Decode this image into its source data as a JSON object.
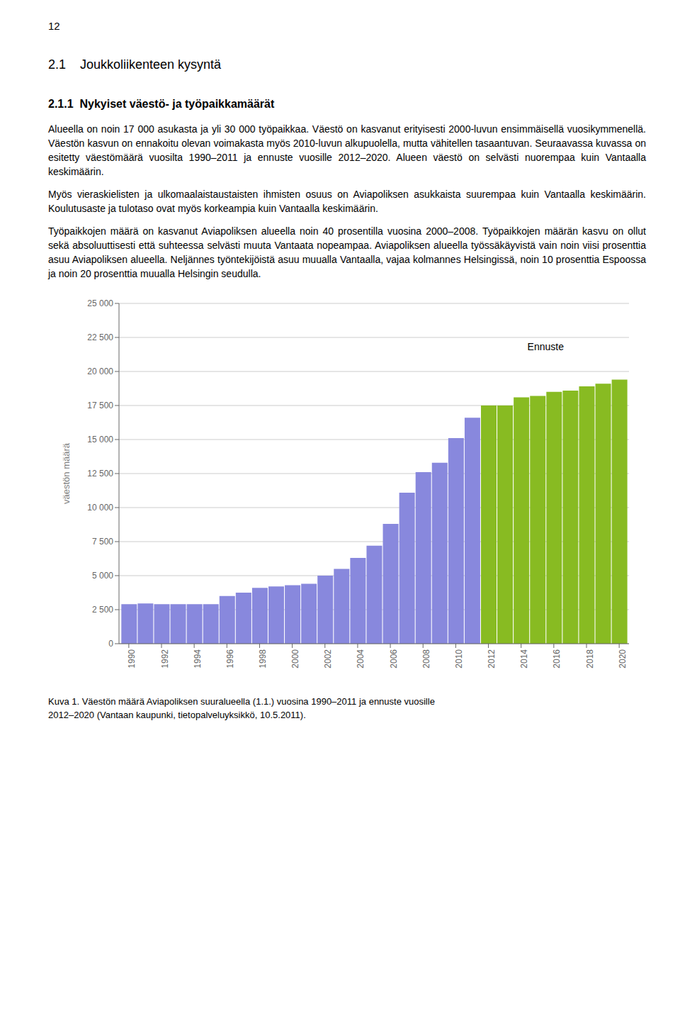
{
  "page": {
    "page_number": "12",
    "heading1": "2.1    Joukkoliikenteen kysyntä",
    "heading2": "2.1.1  Nykyiset väestö- ja työpaikkamäärät",
    "paragraphs": [
      "Alueella on noin 17 000 asukasta ja yli 30 000 työpaikkaa. Väestö on kasvanut erityisesti 2000-luvun ensimmäisellä vuosikymmenellä. Väestön kasvun on ennakoitu olevan voimakasta myös 2010-luvun alkupuolella, mutta vähitellen tasaantuvan. Seuraavassa kuvassa on esitetty väestömäärä vuosilta 1990–2011 ja ennuste vuosille 2012–2020. Alueen väestö on selvästi nuorempaa kuin Vantaalla keskimäärin.",
      "Myös vieraskielisten ja ulkomaalaistaustaisten ihmisten osuus on Aviapoliksen asukkaista suurempaa kuin Vantaalla keskimäärin. Koulutusaste ja tulotaso ovat myös korkeampia kuin Vantaalla keskimäärin.",
      "Työpaikkojen määrä on kasvanut Aviapoliksen alueella noin 40 prosentilla vuosina 2000–2008. Työpaikkojen määrän kasvu on ollut sekä absoluuttisesti että suhteessa selvästi muuta Vantaata nopeampaa. Aviapoliksen alueella työssäkäyvistä vain noin viisi prosenttia asuu Aviapoliksen alueella. Neljännes työntekijöistä asuu muualla Vantaalla, vajaa kolmannes Helsingissä, noin 10 prosenttia Espoossa ja noin 20 prosenttia muualla Helsingin seudulla."
    ],
    "caption": [
      "Kuva 1. Väestön määrä Aviapoliksen suuralueella (1.1.) vuosina 1990–2011 ja ennuste vuosille",
      "2012–2020 (Vantaan kaupunki, tietopalveluyksikkö, 10.5.2011)."
    ]
  },
  "chart_data": {
    "type": "bar",
    "y_label": "väestön määrä",
    "x": [
      1990,
      1991,
      1992,
      1993,
      1994,
      1995,
      1996,
      1997,
      1998,
      1999,
      2000,
      2001,
      2002,
      2003,
      2004,
      2005,
      2006,
      2007,
      2008,
      2009,
      2010,
      2011,
      2012,
      2013,
      2014,
      2015,
      2016,
      2017,
      2018,
      2019,
      2020
    ],
    "values": [
      2900,
      2950,
      2900,
      2900,
      2900,
      2900,
      3500,
      3750,
      4100,
      4200,
      4300,
      4400,
      5000,
      5500,
      6300,
      7200,
      8800,
      11100,
      12600,
      13300,
      15100,
      16600,
      17500,
      17500,
      18100,
      18200,
      18500,
      18600,
      18900,
      19100,
      19400
    ],
    "colors": [
      "#8888dd",
      "#8888dd",
      "#8888dd",
      "#8888dd",
      "#8888dd",
      "#8888dd",
      "#8888dd",
      "#8888dd",
      "#8888dd",
      "#8888dd",
      "#8888dd",
      "#8888dd",
      "#8888dd",
      "#8888dd",
      "#8888dd",
      "#8888dd",
      "#8888dd",
      "#8888dd",
      "#8888dd",
      "#8888dd",
      "#8888dd",
      "#8888dd",
      "#88bb22",
      "#88bb22",
      "#88bb22",
      "#88bb22",
      "#88bb22",
      "#88bb22",
      "#88bb22",
      "#88bb22",
      "#88bb22"
    ],
    "xlim": [
      1989.4,
      2020.6
    ],
    "xticks": [
      1990,
      1992,
      1994,
      1996,
      1998,
      2000,
      2002,
      2004,
      2006,
      2008,
      2010,
      2012,
      2014,
      2016,
      2018,
      2020
    ],
    "ylim": [
      0,
      25000
    ],
    "yticks": [
      0,
      {
        "value": 2500,
        "label": "2 500"
      },
      {
        "value": 5000,
        "label": "5 000"
      },
      {
        "value": 7500,
        "label": "7 500"
      },
      {
        "value": 10000,
        "label": "10 000"
      },
      {
        "value": 12500,
        "label": "12 500"
      },
      {
        "value": 15000,
        "label": "15 000"
      },
      {
        "value": 17500,
        "label": "17 500"
      },
      {
        "value": 20000,
        "label": "20 000"
      },
      {
        "value": 22500,
        "label": "22 500"
      },
      {
        "value": 25000,
        "label": "25 000"
      }
    ],
    "grid": true,
    "annotations": [
      {
        "text": "Ennuste",
        "x": 2015.5,
        "y": 21800
      }
    ]
  }
}
